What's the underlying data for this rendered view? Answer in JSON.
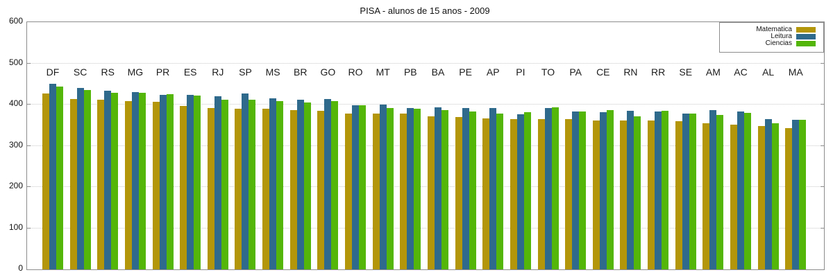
{
  "title": "PISA - alunos de 15 anos - 2009",
  "axis": {
    "y_ticks": [
      "0",
      "100",
      "200",
      "300",
      "400",
      "500",
      "600"
    ],
    "y_min": 0,
    "y_max": 600,
    "y_step": 100
  },
  "colors": {
    "matematica": "#b4960a",
    "leitura": "#2f698c",
    "ciencias": "#55b60a",
    "frame": "#8c8c8c",
    "grid": "#c9c9c9",
    "text": "#111111"
  },
  "chart_data": {
    "type": "bar",
    "title": "PISA - alunos de 15 anos - 2009",
    "xlabel": "",
    "ylabel": "",
    "ylim": [
      0,
      600
    ],
    "grid": "horizontal dotted at 100..500",
    "legend_position": "top-right",
    "categories": [
      "DF",
      "SC",
      "RS",
      "MG",
      "PR",
      "ES",
      "RJ",
      "SP",
      "MS",
      "BR",
      "GO",
      "RO",
      "MT",
      "PB",
      "BA",
      "PE",
      "AP",
      "PI",
      "TO",
      "PA",
      "CE",
      "RN",
      "RR",
      "SE",
      "AM",
      "AC",
      "AL",
      "MA"
    ],
    "series": [
      {
        "name": "Matematica",
        "color": "#b4960a",
        "values": [
          427,
          414,
          411,
          409,
          407,
          396,
          392,
          390,
          390,
          386,
          385,
          379,
          379,
          378,
          371,
          369,
          366,
          365,
          364,
          364,
          362,
          362,
          361,
          360,
          354,
          351,
          348,
          343
        ]
      },
      {
        "name": "Leitura",
        "color": "#2f698c",
        "values": [
          450,
          440,
          434,
          430,
          424,
          424,
          420,
          427,
          415,
          412,
          413,
          398,
          400,
          391,
          393,
          391,
          391,
          377,
          392,
          384,
          382,
          385,
          384,
          379,
          387,
          384,
          364,
          363
        ]
      },
      {
        "name": "Ciencias",
        "color": "#55b60a",
        "values": [
          443,
          436,
          428,
          429,
          425,
          422,
          412,
          411,
          408,
          405,
          409,
          399,
          392,
          390,
          386,
          384,
          379,
          381,
          393,
          383,
          387,
          371,
          385,
          378,
          375,
          380,
          355,
          363
        ]
      }
    ]
  }
}
